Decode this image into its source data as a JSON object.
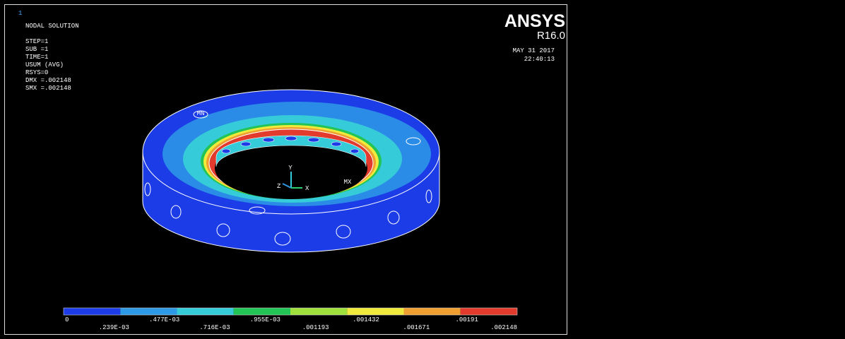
{
  "plot": {
    "window_number": "1",
    "title": "NODAL SOLUTION",
    "info": [
      "STEP=1",
      "SUB =1",
      "TIME=1",
      "USUM      (AVG)",
      "RSYS=0",
      "DMX =.002148",
      "SMX =.002148"
    ],
    "brand": "ANSYS",
    "version": "R16.0",
    "date": "MAY 31 2017",
    "time": "22:40:13",
    "triad": {
      "y": "Y",
      "x": "X",
      "z": "Z"
    },
    "min_label": "MN",
    "max_label": "MX"
  },
  "legend": {
    "labels": [
      "0",
      ".239E-03",
      ".477E-03",
      ".716E-03",
      ".955E-03",
      ".001193",
      ".001432",
      ".001671",
      ".00191",
      ".002148"
    ],
    "colors": [
      "#1c3ce8",
      "#2e9ae6",
      "#36cbd8",
      "#22c455",
      "#9fe03c",
      "#f0ea3c",
      "#f0a030",
      "#e23a2c"
    ]
  }
}
